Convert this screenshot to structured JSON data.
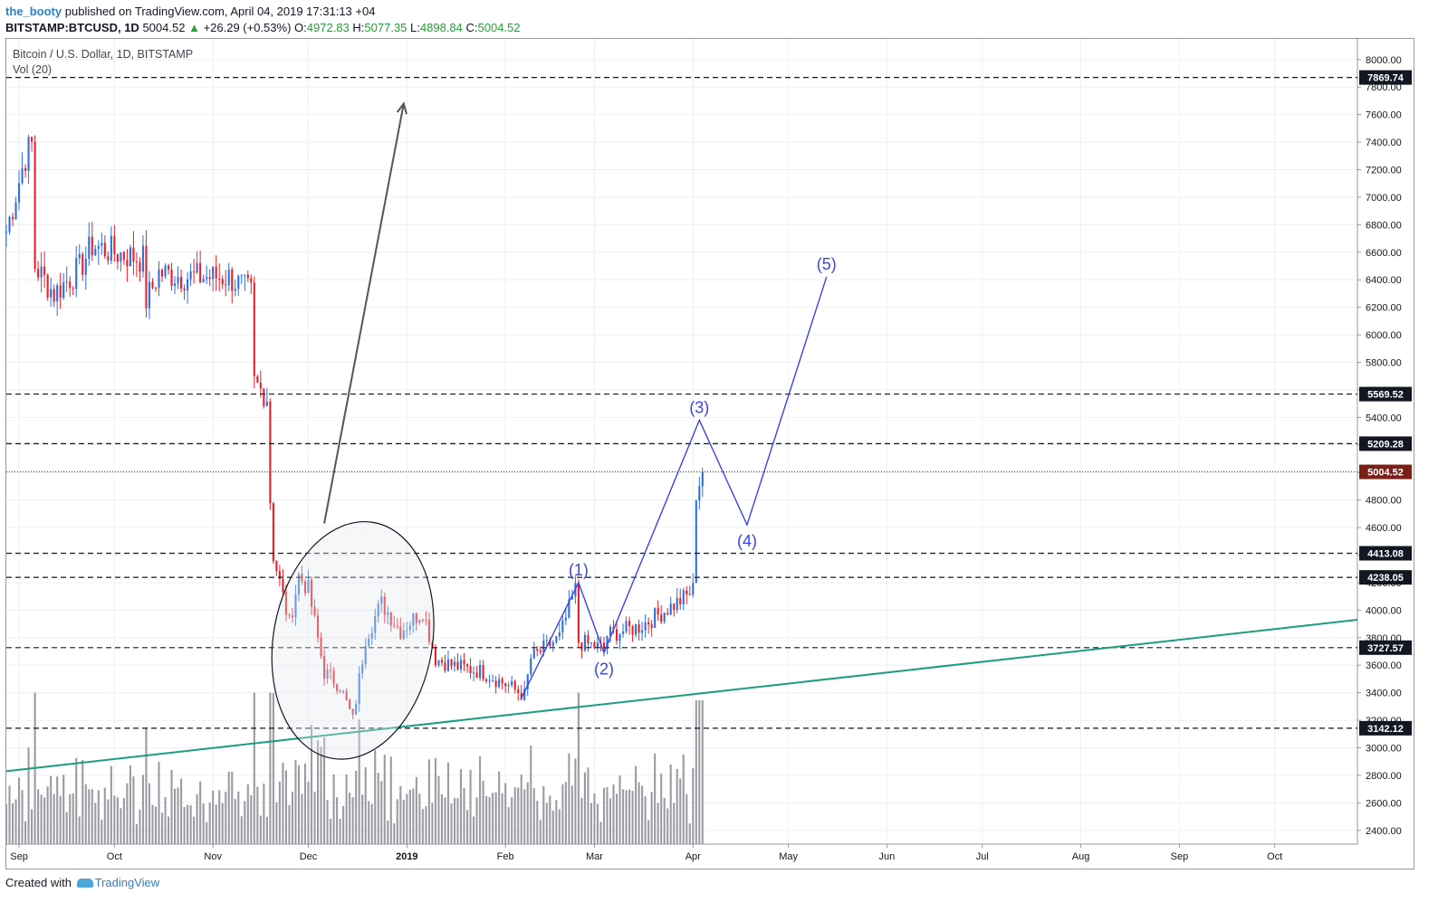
{
  "header": {
    "author": "the_booty",
    "published": "published on TradingView.com, April 04, 2019 17:31:13 +04",
    "symbol": "BITSTAMP:BTCUSD, 1D",
    "last": "5004.52",
    "change": "+26.29 (+0.53%)",
    "o_label": "O:",
    "o": "4972.83",
    "h_label": "H:",
    "h": "5077.35",
    "l_label": "L:",
    "l": "4898.84",
    "c_label": "C:",
    "c": "5004.52"
  },
  "legend": {
    "title": "Bitcoin / U.S. Dollar, 1D, BITSTAMP",
    "volume": "Vol (20)"
  },
  "footer": {
    "created_with": "Created with",
    "brand": "TradingView"
  },
  "colors": {
    "up": "#2e6fe0",
    "down": "#e8202a",
    "volume": "#9a9ca3",
    "trendline": "#1a9e7d",
    "wave": "#3b45e6",
    "arrow": "#555555",
    "last_price_bg": "#7a2018"
  },
  "chart_data": {
    "type": "candlestick",
    "ylim": [
      2300,
      8150
    ],
    "y_ticks": [
      2400,
      2600,
      2800,
      3000,
      3200,
      3400,
      3600,
      3800,
      4000,
      4200,
      4400,
      4600,
      4800,
      5000,
      5200,
      5400,
      5600,
      5800,
      6000,
      6200,
      6400,
      6600,
      6800,
      7000,
      7200,
      7400,
      7600,
      7800,
      8000
    ],
    "x_labels": [
      "Sep",
      "Oct",
      "Nov",
      "Dec",
      "2019",
      "Feb",
      "Mar",
      "Apr",
      "May",
      "Jun",
      "Jul",
      "Aug",
      "Sep",
      "Oct"
    ],
    "x_label_dates": [
      "2018-09-01",
      "2018-10-01",
      "2018-11-01",
      "2018-12-01",
      "2019-01-01",
      "2019-02-01",
      "2019-03-01",
      "2019-04-01",
      "2019-05-01",
      "2019-06-01",
      "2019-07-01",
      "2019-08-01",
      "2019-09-01",
      "2019-10-01"
    ],
    "x_start": "2018-08-28",
    "x_end": "2019-10-27",
    "price_anchors": [
      [
        "2018-08-28",
        6750
      ],
      [
        "2018-09-03",
        7300
      ],
      [
        "2018-09-05",
        7380
      ],
      [
        "2018-09-06",
        6500
      ],
      [
        "2018-09-12",
        6300
      ],
      [
        "2018-09-20",
        6480
      ],
      [
        "2018-09-24",
        6650
      ],
      [
        "2018-10-01",
        6600
      ],
      [
        "2018-10-10",
        6550
      ],
      [
        "2018-10-11",
        6250
      ],
      [
        "2018-10-15",
        6450
      ],
      [
        "2018-10-25",
        6420
      ],
      [
        "2018-11-06",
        6420
      ],
      [
        "2018-11-13",
        6300
      ],
      [
        "2018-11-14",
        5650
      ],
      [
        "2018-11-18",
        5550
      ],
      [
        "2018-11-19",
        4800
      ],
      [
        "2018-11-20",
        4400
      ],
      [
        "2018-11-25",
        3900
      ],
      [
        "2018-11-28",
        4250
      ],
      [
        "2018-12-01",
        4150
      ],
      [
        "2018-12-06",
        3550
      ],
      [
        "2018-12-11",
        3450
      ],
      [
        "2018-12-15",
        3200
      ],
      [
        "2018-12-19",
        3800
      ],
      [
        "2018-12-24",
        4050
      ],
      [
        "2018-12-30",
        3850
      ],
      [
        "2019-01-06",
        4000
      ],
      [
        "2019-01-10",
        3650
      ],
      [
        "2019-01-15",
        3600
      ],
      [
        "2019-01-25",
        3550
      ],
      [
        "2019-02-02",
        3450
      ],
      [
        "2019-02-07",
        3380
      ],
      [
        "2019-02-09",
        3650
      ],
      [
        "2019-02-18",
        3800
      ],
      [
        "2019-02-23",
        4150
      ],
      [
        "2019-02-24",
        3770
      ],
      [
        "2019-03-04",
        3720
      ],
      [
        "2019-03-05",
        3820
      ],
      [
        "2019-03-15",
        3880
      ],
      [
        "2019-03-22",
        3980
      ],
      [
        "2019-03-30",
        4100
      ],
      [
        "2019-04-01",
        4150
      ],
      [
        "2019-04-02",
        4850
      ],
      [
        "2019-04-04",
        5004.52
      ]
    ],
    "volume_scale_max": 100,
    "volume_bottom_price": 2300,
    "volume_top_price": 3400,
    "horizontal_levels": [
      {
        "price": 7869.74,
        "label": "7869.74"
      },
      {
        "price": 5569.52,
        "label": "5569.52"
      },
      {
        "price": 5209.28,
        "label": "5209.28"
      },
      {
        "price": 4413.08,
        "label": "4413.08"
      },
      {
        "price": 4238.05,
        "label": "4238.05"
      },
      {
        "price": 3727.57,
        "label": "3727.57"
      },
      {
        "price": 3142.12,
        "label": "3142.12"
      }
    ],
    "last_price": {
      "price": 5004.52,
      "label": "5004.52"
    },
    "trendline": [
      [
        "2018-08-28",
        2830
      ],
      [
        "2019-10-27",
        3930
      ]
    ],
    "wave_path": [
      {
        "date": "2019-02-06",
        "price": 3360,
        "label": ""
      },
      {
        "date": "2019-02-24",
        "price": 4200,
        "label": "(1)"
      },
      {
        "date": "2019-03-04",
        "price": 3690,
        "label": "(2)"
      },
      {
        "date": "2019-04-03",
        "price": 5380,
        "label": "(3)"
      },
      {
        "date": "2019-04-18",
        "price": 4620,
        "label": "(4)"
      },
      {
        "date": "2019-05-13",
        "price": 6420,
        "label": "(5)"
      }
    ],
    "arrow": {
      "from": [
        "2018-12-06",
        4630
      ],
      "to": [
        "2018-12-31",
        7680
      ]
    },
    "ellipse": {
      "center": [
        "2018-12-15",
        3780
      ],
      "rx_days": 25,
      "ry_price": 870,
      "rotate_deg": 10
    }
  }
}
